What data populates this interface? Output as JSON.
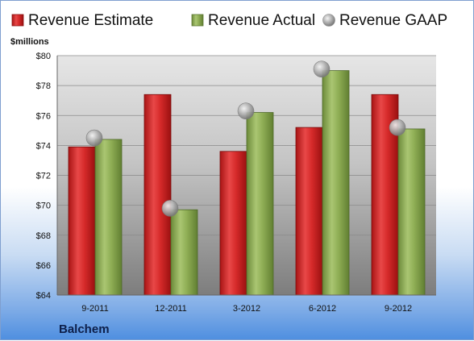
{
  "chart_data": {
    "type": "bar",
    "company": "Balchem",
    "unit_label": "$millions",
    "categories": [
      "9-2011",
      "12-2011",
      "3-2012",
      "6-2012",
      "9-2012"
    ],
    "ylim": [
      64,
      80
    ],
    "yticks": [
      "$64",
      "$66",
      "$68",
      "$70",
      "$72",
      "$74",
      "$76",
      "$78",
      "$80"
    ],
    "ytick_values": [
      64,
      66,
      68,
      70,
      72,
      74,
      76,
      78,
      80
    ],
    "grid": true,
    "legend_position": "top",
    "series": [
      {
        "name": "Revenue Estimate",
        "kind": "bar",
        "color": "#d42a2a",
        "values": [
          73.9,
          77.4,
          73.6,
          75.2,
          77.4
        ]
      },
      {
        "name": "Revenue Actual",
        "kind": "bar",
        "color": "#8fae55",
        "values": [
          74.4,
          69.7,
          76.2,
          79.0,
          75.1
        ]
      },
      {
        "name": "Revenue GAAP",
        "kind": "marker",
        "color": "#a8a8a8",
        "values": [
          74.5,
          69.8,
          76.3,
          79.1,
          75.2
        ]
      }
    ]
  }
}
